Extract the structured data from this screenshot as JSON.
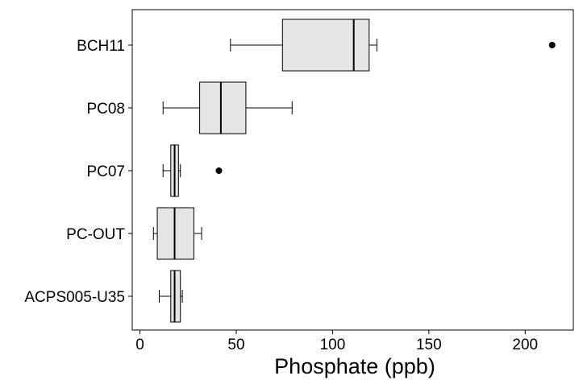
{
  "chart_data": {
    "type": "boxplot",
    "orientation": "horizontal",
    "title": "",
    "xlabel": "Phosphate (ppb)",
    "ylabel": "",
    "xlim": [
      -4,
      225
    ],
    "xticks": [
      0,
      50,
      100,
      150,
      200
    ],
    "grid": false,
    "legend": "none",
    "colors": {
      "box_fill": "#e5e5e5",
      "stroke": "#000000"
    },
    "categories": [
      "BCH11",
      "PC08",
      "PC07",
      "PC-OUT",
      "ACPS005-U35"
    ],
    "boxes": [
      {
        "name": "BCH11",
        "whisker_low": 47,
        "q1": 74,
        "median": 111,
        "q3": 119,
        "whisker_high": 123,
        "outliers": [
          214
        ]
      },
      {
        "name": "PC08",
        "whisker_low": 12,
        "q1": 31,
        "median": 42,
        "q3": 55,
        "whisker_high": 79,
        "outliers": []
      },
      {
        "name": "PC07",
        "whisker_low": 12,
        "q1": 16,
        "median": 18,
        "q3": 20,
        "whisker_high": 21,
        "outliers": [
          41
        ]
      },
      {
        "name": "PC-OUT",
        "whisker_low": 7,
        "q1": 9,
        "median": 18,
        "q3": 28,
        "whisker_high": 32,
        "outliers": []
      },
      {
        "name": "ACPS005-U35",
        "whisker_low": 10,
        "q1": 16,
        "median": 18,
        "q3": 21,
        "whisker_high": 22,
        "outliers": []
      }
    ]
  }
}
